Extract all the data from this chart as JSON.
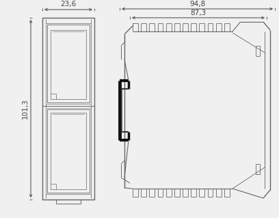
{
  "bg_color": "#f0f0f0",
  "line_color": "#666666",
  "thick_color": "#222222",
  "dim_color": "#444444",
  "dim_23_6": "23,6",
  "dim_101_3": "101,3",
  "dim_94_8": "94,8",
  "dim_87_3": "87,3",
  "font_size_dim": 7.5,
  "fig_width": 4.08,
  "fig_height": 3.19,
  "dpi": 100
}
